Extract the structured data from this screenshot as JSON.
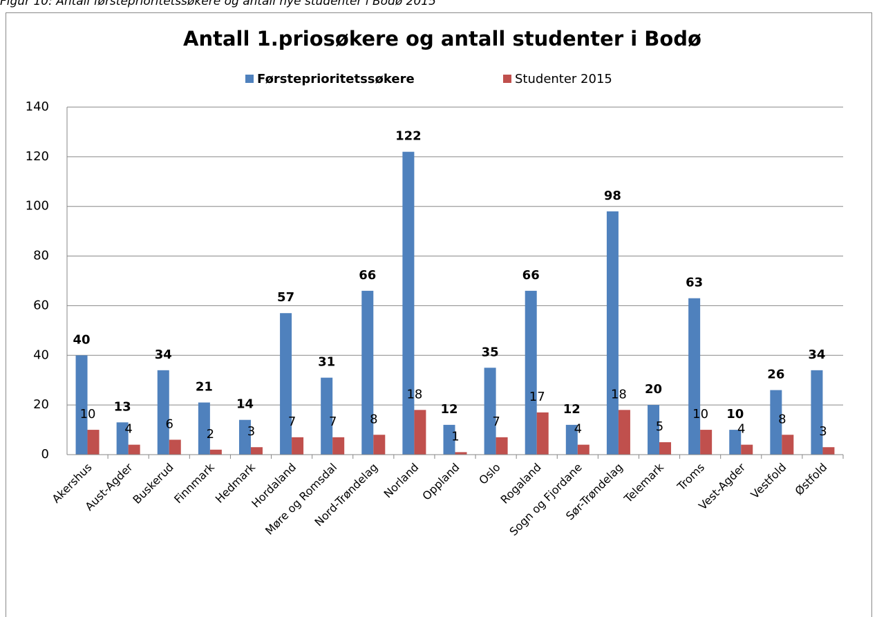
{
  "caption": "Figur 10: Antall førsteprioritetssøkere og antall nye studenter i Bodø 2015",
  "chart_data": {
    "type": "bar",
    "title": "Antall 1.priosøkere og antall studenter i Bodø",
    "categories": [
      "Akershus",
      "Aust-Agder",
      "Buskerud",
      "Finnmark",
      "Hedmark",
      "Hordaland",
      "Møre og Romsdal",
      "Nord-Trøndelag",
      "Norland",
      "Oppland",
      "Oslo",
      "Rogaland",
      "Sogn og Fjordane",
      "Sør-Trøndelag",
      "Telemark",
      "Troms",
      "Vest-Agder",
      "Vestfold",
      "Østfold"
    ],
    "series": [
      {
        "name": "Førsteprioritetssøkere",
        "color": "#4f81bd",
        "values": [
          40,
          13,
          34,
          21,
          14,
          57,
          31,
          66,
          122,
          12,
          35,
          66,
          12,
          98,
          20,
          63,
          10,
          26,
          34
        ]
      },
      {
        "name": "Studenter 2015",
        "color": "#c0504d",
        "values": [
          10,
          4,
          6,
          2,
          3,
          7,
          7,
          8,
          18,
          1,
          7,
          17,
          4,
          18,
          5,
          10,
          4,
          8,
          3
        ]
      }
    ],
    "ylim": [
      0,
      140
    ],
    "yticks": [
      0,
      20,
      40,
      60,
      80,
      100,
      120,
      140
    ],
    "grid": true,
    "legend": "top"
  }
}
